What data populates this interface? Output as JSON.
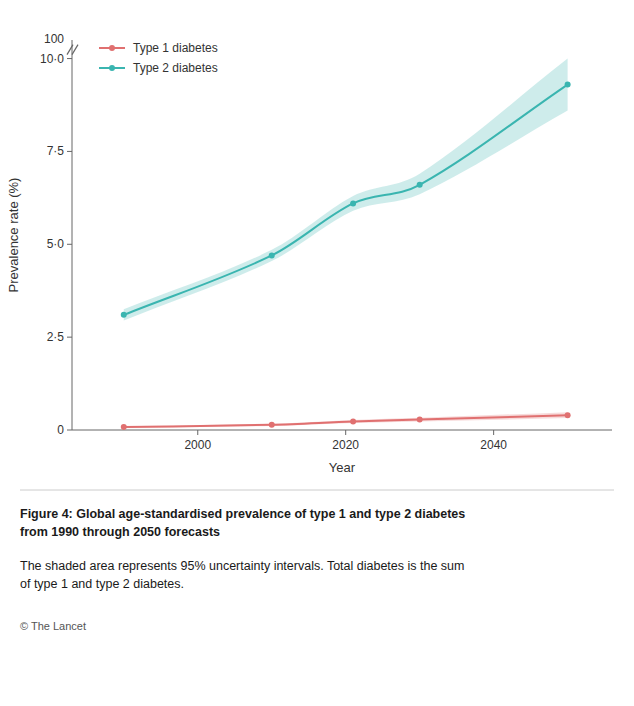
{
  "chart_data": {
    "type": "line",
    "title": "Figure 4: Global age-standardised prevalence of type 1 and type 2 diabetes\nfrom 1990 through 2050 forecasts",
    "subtitle": "The shaded area represents 95% uncertainty intervals. Total diabetes is the sum\nof type 1 and type 2 diabetes.",
    "xlabel": "Year",
    "ylabel": "Prevalence rate (%)",
    "x": [
      1990,
      2010,
      2021,
      2030,
      2050
    ],
    "series": [
      {
        "name": "Type 1 diabetes",
        "color": "#e07070",
        "values": [
          0.08,
          0.14,
          0.23,
          0.28,
          0.4
        ],
        "lower": [
          0.06,
          0.11,
          0.19,
          0.23,
          0.32
        ],
        "upper": [
          0.1,
          0.17,
          0.27,
          0.33,
          0.48
        ]
      },
      {
        "name": "Type 2 diabetes",
        "color": "#3ab5b0",
        "values": [
          3.1,
          4.7,
          6.1,
          6.6,
          9.3
        ],
        "lower": [
          2.95,
          4.55,
          5.9,
          6.35,
          8.6
        ],
        "upper": [
          3.25,
          4.85,
          6.3,
          6.9,
          10.0
        ]
      }
    ],
    "xlim": [
      1983,
      2056
    ],
    "ylim": [
      0.0,
      10.5
    ],
    "xticks": [
      2000,
      2020,
      2040
    ],
    "yticks": [
      0,
      {
        "value": 2.5,
        "label": "2·5"
      },
      {
        "value": 5.0,
        "label": "5·0"
      },
      {
        "value": 7.5,
        "label": "7·5"
      },
      {
        "value": 10.0,
        "label": "10·0"
      }
    ],
    "annotations": [
      "100",
      "© The Lancet"
    ],
    "legend": "upper left",
    "grid": false,
    "marker": "circle",
    "line_style": "solid"
  }
}
